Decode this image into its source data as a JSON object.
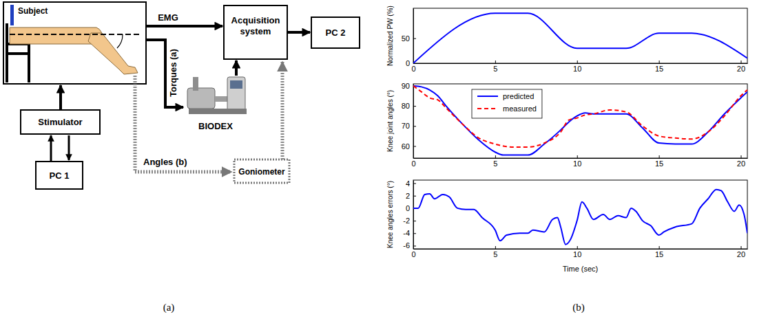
{
  "diagram": {
    "nodes": [
      {
        "label": "Subject"
      },
      {
        "label": "Stimulator"
      },
      {
        "label": "PC 1"
      },
      {
        "label": "Acquisition system"
      },
      {
        "label": "PC 2"
      },
      {
        "label": "BIODEX"
      },
      {
        "label": "Goniometer"
      }
    ],
    "edges": [
      {
        "label": "EMG"
      },
      {
        "label": "Torques (a)"
      },
      {
        "label": "Angles (b)"
      }
    ]
  },
  "panel_labels": [
    "(a)",
    "(b)"
  ],
  "chart_data": [
    {
      "type": "line",
      "y_label": "Normalized PW (%)",
      "x": [
        0,
        5,
        7,
        10,
        13,
        15,
        17,
        20.4
      ],
      "xlim": [
        0,
        20.4
      ],
      "xticks": [
        0,
        5,
        10,
        15,
        20
      ],
      "ylim": [
        0,
        110
      ],
      "yticks": [
        0,
        50
      ],
      "grid": false,
      "series": [
        {
          "color": "#0000ff",
          "line_style": "solid",
          "values": [
            0,
            100,
            100,
            30,
            30,
            60,
            60,
            10
          ]
        }
      ]
    },
    {
      "type": "line",
      "y_label": "Knee joint angles (°)",
      "x": [
        0,
        0.5,
        1,
        1.5,
        2,
        3,
        4,
        5,
        5.5,
        6,
        7,
        8,
        9,
        9.5,
        10,
        10.5,
        11,
        12,
        13,
        14,
        15,
        16,
        17,
        18,
        19,
        20,
        20.4
      ],
      "xlim": [
        0,
        20.4
      ],
      "xticks": [
        0,
        5,
        10,
        15,
        20
      ],
      "ylim": [
        54,
        91
      ],
      "yticks": [
        60,
        70,
        80,
        90
      ],
      "grid": false,
      "legend": "upper left",
      "series": [
        {
          "name": "predicted",
          "color": "#0000ff",
          "line_style": "solid",
          "values": [
            90,
            89.5,
            88,
            85,
            80,
            71,
            63,
            57,
            55.5,
            55.5,
            55.5,
            61,
            68,
            72,
            75,
            76.5,
            76,
            76,
            76,
            69,
            61.5,
            61,
            61,
            67,
            76,
            84,
            87
          ]
        },
        {
          "name": "measured",
          "color": "#ff0000",
          "line_style": "dashed",
          "values": [
            90,
            87,
            84,
            83,
            79,
            71,
            64,
            61,
            60,
            59.5,
            59.5,
            61.5,
            67,
            73,
            74,
            75.5,
            76,
            78,
            77,
            70,
            65,
            64,
            63.5,
            67,
            75,
            85,
            88
          ]
        }
      ]
    },
    {
      "type": "line",
      "y_label": "Knee angles errors (°)",
      "x_label": "Time (sec)",
      "x": [
        0,
        0.3,
        0.7,
        1,
        1.3,
        1.8,
        2.2,
        2.7,
        3.2,
        3.7,
        4.2,
        5,
        5.3,
        5.7,
        6.5,
        7,
        7.3,
        8,
        8.5,
        8.8,
        9,
        9.3,
        9.6,
        10,
        10.3,
        10.6,
        11,
        11.6,
        12,
        12.5,
        13,
        13.3,
        13.6,
        14,
        14.5,
        15,
        15.3,
        16,
        17,
        17.5,
        18,
        18.5,
        18.8,
        19.2,
        19.6,
        19.9,
        20.2,
        20.4
      ],
      "xlim": [
        0,
        20.4
      ],
      "xticks": [
        0,
        5,
        10,
        15,
        20
      ],
      "ylim": [
        -6.5,
        4.5
      ],
      "yticks": [
        -6,
        -4,
        -2,
        0,
        2,
        4
      ],
      "grid": false,
      "series": [
        {
          "color": "#0000ff",
          "line_style": "solid",
          "values": [
            0,
            0,
            2.2,
            2.3,
            1.5,
            2.2,
            1.8,
            0,
            -0.2,
            -0.2,
            -1.5,
            -3.5,
            -5.2,
            -4.3,
            -4,
            -4,
            -3.5,
            -3.8,
            -1.8,
            -1.5,
            -3,
            -5.8,
            -5,
            -2,
            1,
            0,
            -1.8,
            -1,
            -1.8,
            -1.2,
            -1.5,
            0,
            -0.5,
            -2,
            -2.8,
            -4.3,
            -3.8,
            -3,
            -2.5,
            0,
            1.5,
            3,
            2.8,
            1,
            -0.5,
            0.5,
            -1,
            -4
          ]
        }
      ]
    }
  ]
}
